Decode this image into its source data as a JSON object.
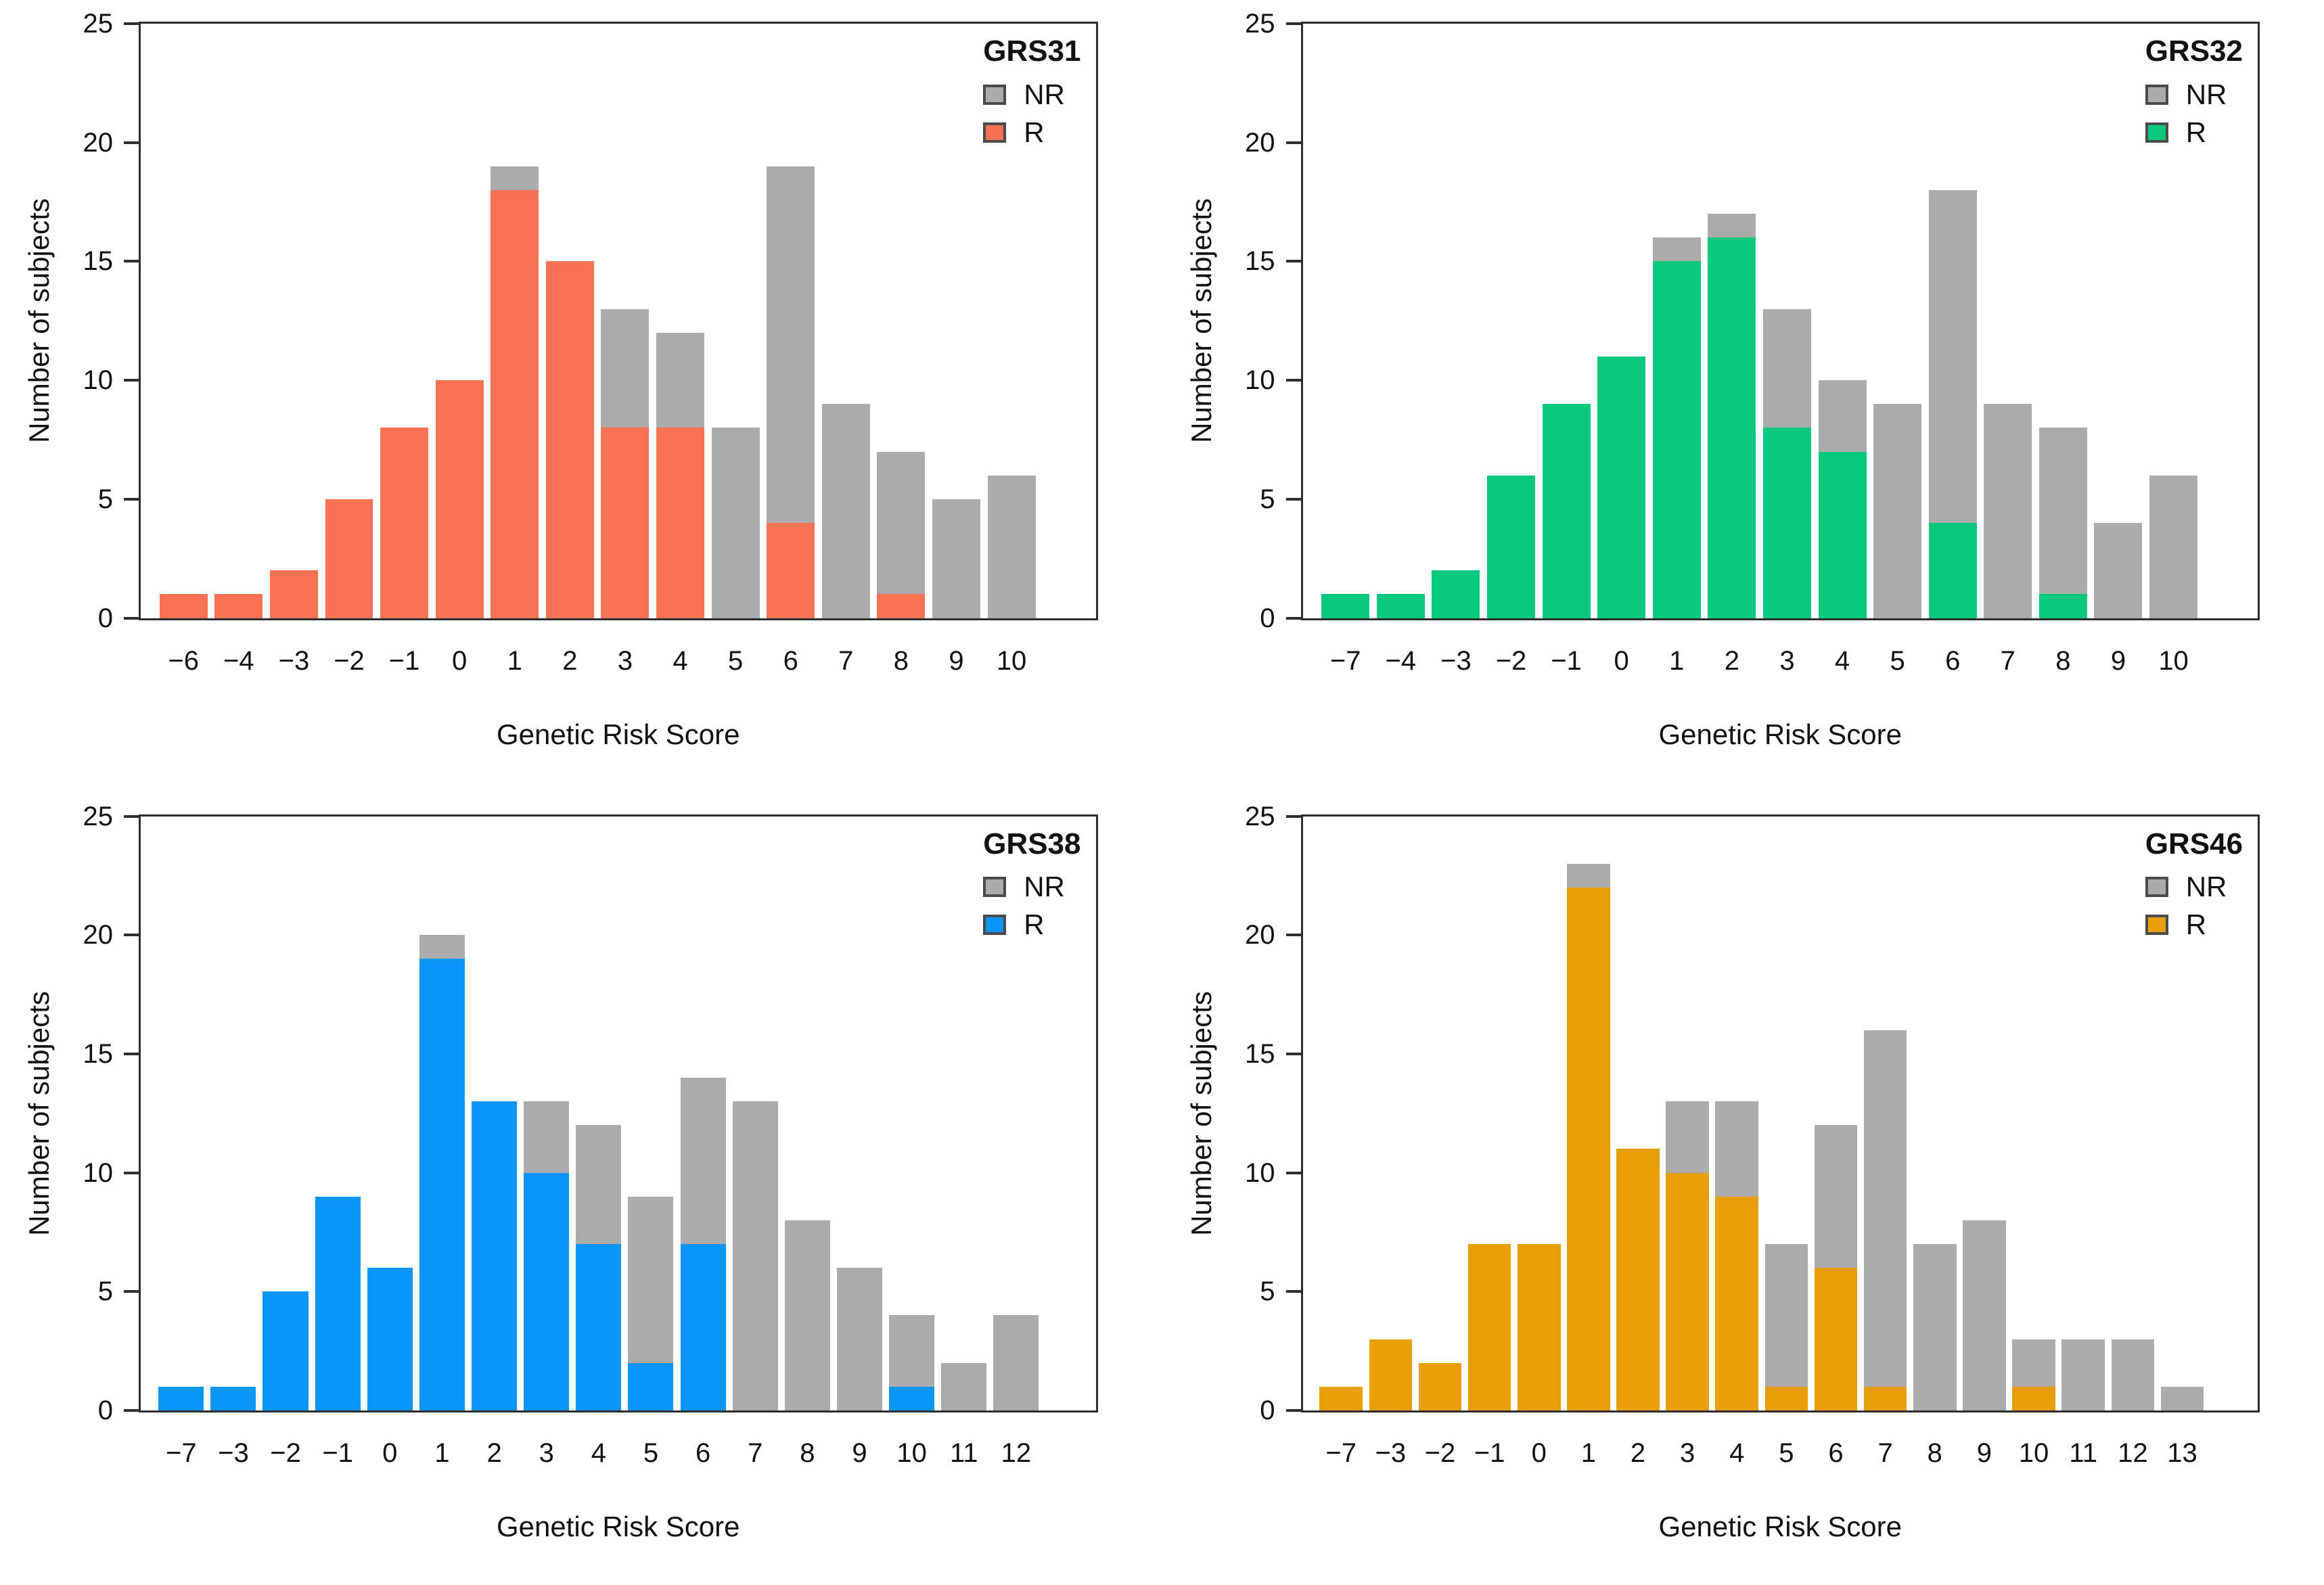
{
  "figure": {
    "background": "#ffffff",
    "axis_color": "#2e2e2e",
    "text_color": "#111111",
    "nr_color": "#ababab",
    "legend_nr_label": "NR",
    "legend_r_label": "R",
    "xlabel": "Genetic Risk Score",
    "ylabel": "Number of subjects"
  },
  "chart_data": [
    {
      "type": "bar",
      "stacked": true,
      "title": "GRS31",
      "xlabel": "Genetic Risk Score",
      "ylabel": "Number of subjects",
      "ylim": [
        0,
        25
      ],
      "yticks": [
        0,
        5,
        10,
        15,
        20,
        25
      ],
      "grid": false,
      "legend_position": "top-right",
      "legend": [
        "NR",
        "R"
      ],
      "nr_color": "#ababab",
      "r_color": "#fb7156",
      "categories": [
        "−6",
        "−4",
        "−3",
        "−2",
        "−1",
        "0",
        "1",
        "2",
        "3",
        "4",
        "5",
        "6",
        "7",
        "8",
        "9",
        "10"
      ],
      "series": [
        {
          "name": "R",
          "values": [
            1,
            1,
            2,
            5,
            8,
            10,
            18,
            15,
            8,
            8,
            0,
            4,
            0,
            1,
            0,
            0
          ]
        },
        {
          "name": "NR",
          "values": [
            0,
            0,
            0,
            0,
            0,
            0,
            1,
            0,
            5,
            4,
            8,
            15,
            9,
            6,
            5,
            6
          ]
        }
      ]
    },
    {
      "type": "bar",
      "stacked": true,
      "title": "GRS32",
      "xlabel": "Genetic Risk Score",
      "ylabel": "Number of subjects",
      "ylim": [
        0,
        25
      ],
      "yticks": [
        0,
        5,
        10,
        15,
        20,
        25
      ],
      "grid": false,
      "legend_position": "top-right",
      "legend": [
        "NR",
        "R"
      ],
      "nr_color": "#ababab",
      "r_color": "#07c97e",
      "categories": [
        "−7",
        "−4",
        "−3",
        "−2",
        "−1",
        "0",
        "1",
        "2",
        "3",
        "4",
        "5",
        "6",
        "7",
        "8",
        "9",
        "10"
      ],
      "series": [
        {
          "name": "R",
          "values": [
            1,
            1,
            2,
            6,
            9,
            11,
            15,
            16,
            8,
            7,
            0,
            4,
            0,
            1,
            0,
            0
          ]
        },
        {
          "name": "NR",
          "values": [
            0,
            0,
            0,
            0,
            0,
            0,
            1,
            1,
            5,
            3,
            9,
            14,
            9,
            7,
            4,
            6
          ]
        }
      ]
    },
    {
      "type": "bar",
      "stacked": true,
      "title": "GRS38",
      "xlabel": "Genetic Risk Score",
      "ylabel": "Number of subjects",
      "ylim": [
        0,
        25
      ],
      "yticks": [
        0,
        5,
        10,
        15,
        20,
        25
      ],
      "grid": false,
      "legend_position": "top-right",
      "legend": [
        "NR",
        "R"
      ],
      "nr_color": "#ababab",
      "r_color": "#0a95f8",
      "categories": [
        "−7",
        "−3",
        "−2",
        "−1",
        "0",
        "1",
        "2",
        "3",
        "4",
        "5",
        "6",
        "7",
        "8",
        "9",
        "10",
        "11",
        "12"
      ],
      "series": [
        {
          "name": "R",
          "values": [
            1,
            1,
            5,
            9,
            6,
            19,
            13,
            10,
            7,
            2,
            7,
            0,
            0,
            0,
            1,
            0,
            0
          ]
        },
        {
          "name": "NR",
          "values": [
            0,
            0,
            0,
            0,
            0,
            1,
            0,
            3,
            5,
            7,
            7,
            13,
            8,
            6,
            3,
            2,
            4
          ]
        }
      ]
    },
    {
      "type": "bar",
      "stacked": true,
      "title": "GRS46",
      "xlabel": "Genetic Risk Score",
      "ylabel": "Number of subjects",
      "ylim": [
        0,
        25
      ],
      "yticks": [
        0,
        5,
        10,
        15,
        20,
        25
      ],
      "grid": false,
      "legend_position": "top-right",
      "legend": [
        "NR",
        "R"
      ],
      "nr_color": "#ababab",
      "r_color": "#e89e06",
      "categories": [
        "−7",
        "−3",
        "−2",
        "−1",
        "0",
        "1",
        "2",
        "3",
        "4",
        "5",
        "6",
        "7",
        "8",
        "9",
        "10",
        "11",
        "12",
        "13"
      ],
      "series": [
        {
          "name": "R",
          "values": [
            1,
            3,
            2,
            7,
            7,
            22,
            11,
            10,
            9,
            1,
            6,
            1,
            0,
            0,
            1,
            0,
            0,
            0
          ]
        },
        {
          "name": "NR",
          "values": [
            0,
            0,
            0,
            0,
            0,
            1,
            0,
            3,
            4,
            6,
            6,
            15,
            7,
            8,
            2,
            3,
            3,
            1
          ]
        }
      ]
    }
  ]
}
